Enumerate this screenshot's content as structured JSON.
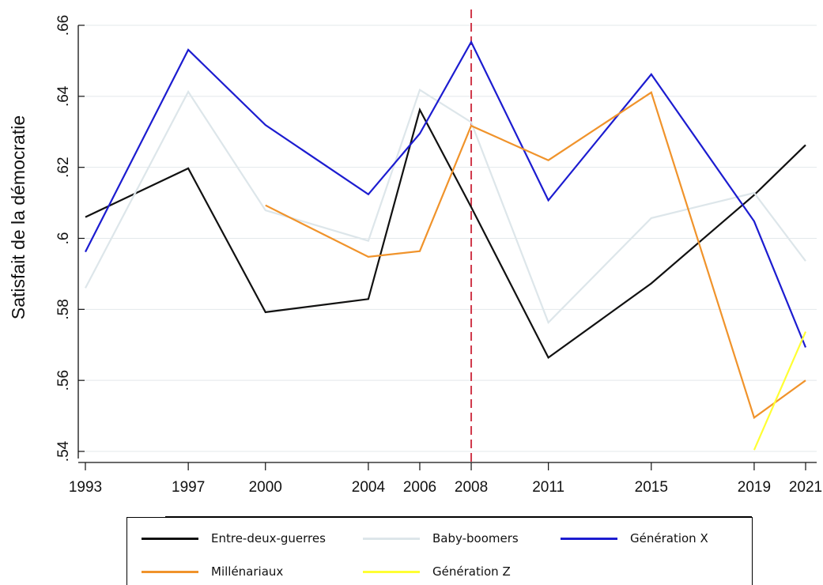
{
  "chart_data": {
    "type": "line",
    "title": "",
    "xlabel": "",
    "ylabel": "Satisfait de la démocratie",
    "x": [
      1993,
      1997,
      2000,
      2004,
      2006,
      2008,
      2011,
      2015,
      2019,
      2021
    ],
    "x_tick_labels": [
      "1993",
      "1997",
      "2000",
      "2004",
      "2006",
      "2008",
      "2011",
      "2015",
      "2019",
      "2021"
    ],
    "y_ticks": [
      0.54,
      0.56,
      0.58,
      0.6,
      0.62,
      0.64,
      0.66
    ],
    "y_tick_labels": [
      ".54",
      ".56",
      ".58",
      ".6",
      ".62",
      ".64",
      ".66"
    ],
    "ylim": [
      0.54,
      0.66
    ],
    "grid": "horizontal",
    "reference_line": {
      "x": 2008,
      "color": "#d0384a",
      "style": "dashed"
    },
    "series": [
      {
        "name": "Entre-deux-guerres",
        "color": "#111111",
        "x": [
          1993,
          1997,
          2000,
          2004,
          2006,
          2008,
          2011,
          2015,
          2019,
          2021
        ],
        "values": [
          0.606,
          0.6197,
          0.5792,
          0.5829,
          0.6362,
          0.6088,
          0.5664,
          0.5873,
          0.6122,
          0.6263
        ]
      },
      {
        "name": "Baby-boomers",
        "color": "#dde6ea",
        "x": [
          1993,
          1997,
          2000,
          2004,
          2006,
          2008,
          2011,
          2015,
          2019,
          2021
        ],
        "values": [
          0.586,
          0.6413,
          0.6079,
          0.5993,
          0.6418,
          0.6327,
          0.5763,
          0.6057,
          0.6128,
          0.5936
        ]
      },
      {
        "name": "Génération X",
        "color": "#1c1cd0",
        "x": [
          1993,
          1997,
          2000,
          2004,
          2006,
          2008,
          2011,
          2015,
          2019,
          2021
        ],
        "values": [
          0.5962,
          0.6531,
          0.6319,
          0.6124,
          0.6295,
          0.6553,
          0.6107,
          0.6462,
          0.6048,
          0.5693
        ]
      },
      {
        "name": "Millénariaux",
        "color": "#f0932b",
        "x": [
          2000,
          2004,
          2006,
          2008,
          2011,
          2015,
          2019,
          2021
        ],
        "values": [
          0.6093,
          0.5948,
          0.5964,
          0.6317,
          0.622,
          0.6411,
          0.5495,
          0.56
        ]
      },
      {
        "name": "Génération Z",
        "color": "#ffff33",
        "x": [
          2019,
          2021
        ],
        "values": [
          0.5404,
          0.5737
        ]
      }
    ],
    "legend": {
      "position": "bottom",
      "columns": 3
    }
  }
}
